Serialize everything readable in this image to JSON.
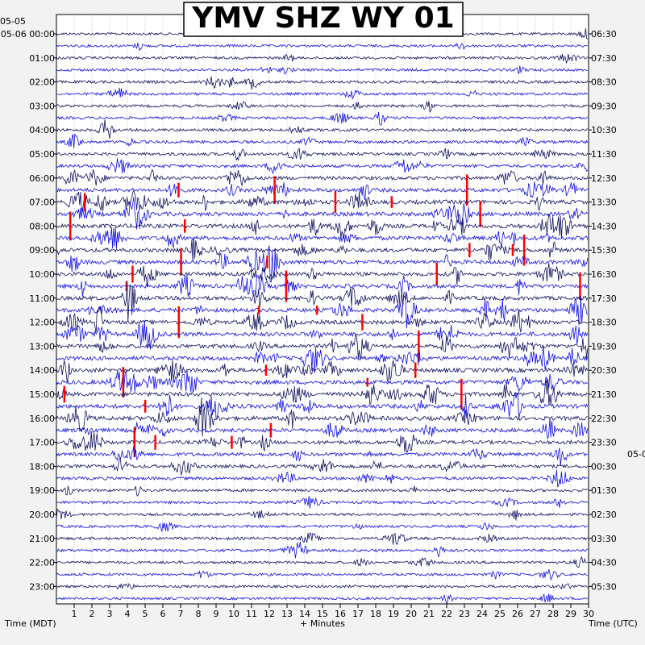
{
  "chart_data": {
    "type": "line",
    "title": "YMV SHZ WY 01",
    "left_axis_label": "Time (MDT)",
    "right_axis_label": "Time (UTC)",
    "x_axis_label": "+ Minutes",
    "left_top_dates": [
      "05-05",
      "05-06"
    ],
    "right_date_mid": "05-0",
    "x_ticks": [
      "1",
      "2",
      "3",
      "4",
      "5",
      "6",
      "7",
      "8",
      "9",
      "10",
      "11",
      "12",
      "13",
      "14",
      "15",
      "16",
      "17",
      "18",
      "19",
      "20",
      "21",
      "22",
      "23",
      "24",
      "25",
      "26",
      "27",
      "28",
      "29",
      "30"
    ],
    "x_range": [
      0,
      30
    ],
    "left_hour_labels": [
      "00:00",
      "01:00",
      "02:00",
      "03:00",
      "04:00",
      "05:00",
      "06:00",
      "07:00",
      "08:00",
      "09:00",
      "10:00",
      "11:00",
      "12:00",
      "13:00",
      "14:00",
      "15:00",
      "16:00",
      "17:00",
      "18:00",
      "19:00",
      "20:00",
      "21:00",
      "22:00",
      "23:00"
    ],
    "right_hour_labels": [
      "06:30",
      "07:30",
      "08:30",
      "09:30",
      "10:30",
      "11:30",
      "12:30",
      "13:30",
      "14:30",
      "15:30",
      "16:30",
      "17:30",
      "18:30",
      "19:30",
      "20:30",
      "21:30",
      "22:30",
      "23:30",
      "00:30",
      "01:30",
      "02:30",
      "03:30",
      "04:30",
      "05:30"
    ],
    "traces_per_hour": 2,
    "trace_colors": [
      "#101060",
      "#1010e0"
    ],
    "clip_color": "#ff0000",
    "activity_by_half_hour": [
      0.2,
      0.25,
      0.25,
      0.3,
      0.35,
      0.3,
      0.3,
      0.3,
      0.35,
      0.4,
      0.45,
      0.5,
      0.7,
      0.9,
      1.0,
      1.0,
      1.0,
      1.0,
      0.95,
      0.95,
      0.9,
      0.9,
      0.9,
      0.95,
      0.95,
      1.0,
      1.0,
      1.0,
      1.0,
      1.0,
      1.0,
      1.0,
      1.0,
      0.9,
      0.8,
      0.7,
      0.6,
      0.5,
      0.35,
      0.3,
      0.3,
      0.3,
      0.35,
      0.35,
      0.3,
      0.3,
      0.25,
      0.2
    ]
  }
}
